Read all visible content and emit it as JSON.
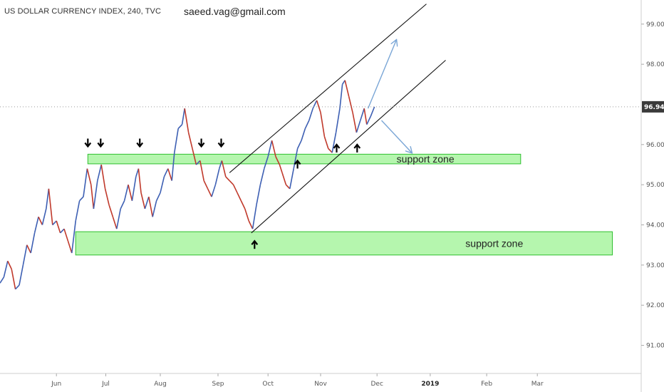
{
  "header": {
    "symbol_title": "US DOLLAR CURRENCY INDEX, 240, TVC",
    "author": "saeed.vag@gmail.com"
  },
  "colors": {
    "up_candle": "#3d5fb3",
    "down_candle": "#c0392b",
    "zone_fill": "#a8f5a0",
    "zone_stroke": "#2fbf2f",
    "channel_line": "#111111",
    "projection_arrow": "#7aa6d6",
    "price_tag_bg": "#3a3a3a",
    "price_line": "#9a9a9a"
  },
  "chart_data": {
    "type": "line",
    "ylim": [
      90.3,
      99.6
    ],
    "yticks": [
      "99.00",
      "98.00",
      "96.00",
      "95.00",
      "94.00",
      "93.00",
      "92.00",
      "91.00"
    ],
    "ytick_values": [
      99,
      98,
      96,
      95,
      94,
      93,
      92,
      91
    ],
    "xticks": [
      "Jun",
      "Jul",
      "Aug",
      "Sep",
      "Oct",
      "Nov",
      "Dec",
      "2019",
      "Feb",
      "Mar"
    ],
    "xtick_positions": [
      0.088,
      0.165,
      0.25,
      0.34,
      0.418,
      0.5,
      0.588,
      0.671,
      0.759,
      0.838
    ],
    "last_price": "96.94",
    "last_price_value": 96.94,
    "series": [
      {
        "points": [
          [
            0.0,
            92.55
          ],
          [
            0.006,
            92.7
          ],
          [
            0.012,
            93.1
          ],
          [
            0.018,
            92.9
          ],
          [
            0.024,
            92.4
          ],
          [
            0.03,
            92.5
          ],
          [
            0.036,
            93.0
          ],
          [
            0.042,
            93.5
          ],
          [
            0.048,
            93.3
          ],
          [
            0.054,
            93.8
          ],
          [
            0.06,
            94.2
          ],
          [
            0.066,
            94.0
          ],
          [
            0.072,
            94.4
          ],
          [
            0.076,
            94.9
          ],
          [
            0.082,
            94.0
          ],
          [
            0.088,
            94.1
          ],
          [
            0.094,
            93.8
          ],
          [
            0.1,
            93.9
          ],
          [
            0.106,
            93.6
          ],
          [
            0.112,
            93.3
          ],
          [
            0.118,
            94.1
          ],
          [
            0.124,
            94.6
          ],
          [
            0.13,
            94.7
          ],
          [
            0.136,
            95.4
          ],
          [
            0.142,
            95.0
          ],
          [
            0.146,
            94.4
          ],
          [
            0.152,
            95.1
          ],
          [
            0.158,
            95.5
          ],
          [
            0.164,
            94.9
          ],
          [
            0.17,
            94.5
          ],
          [
            0.176,
            94.2
          ],
          [
            0.182,
            93.9
          ],
          [
            0.188,
            94.4
          ],
          [
            0.194,
            94.6
          ],
          [
            0.2,
            95.0
          ],
          [
            0.206,
            94.6
          ],
          [
            0.212,
            95.2
          ],
          [
            0.216,
            95.4
          ],
          [
            0.22,
            94.8
          ],
          [
            0.226,
            94.4
          ],
          [
            0.232,
            94.7
          ],
          [
            0.238,
            94.2
          ],
          [
            0.244,
            94.6
          ],
          [
            0.25,
            94.8
          ],
          [
            0.256,
            95.2
          ],
          [
            0.262,
            95.4
          ],
          [
            0.268,
            95.1
          ],
          [
            0.272,
            95.8
          ],
          [
            0.278,
            96.4
          ],
          [
            0.284,
            96.5
          ],
          [
            0.288,
            96.9
          ],
          [
            0.294,
            96.3
          ],
          [
            0.3,
            95.9
          ],
          [
            0.306,
            95.5
          ],
          [
            0.312,
            95.6
          ],
          [
            0.318,
            95.1
          ],
          [
            0.324,
            94.9
          ],
          [
            0.33,
            94.7
          ],
          [
            0.336,
            95.0
          ],
          [
            0.342,
            95.4
          ],
          [
            0.346,
            95.6
          ],
          [
            0.352,
            95.2
          ],
          [
            0.358,
            95.1
          ],
          [
            0.364,
            95.0
          ],
          [
            0.37,
            94.8
          ],
          [
            0.376,
            94.6
          ],
          [
            0.382,
            94.4
          ],
          [
            0.388,
            94.1
          ],
          [
            0.394,
            93.9
          ],
          [
            0.4,
            94.5
          ],
          [
            0.406,
            95.0
          ],
          [
            0.412,
            95.4
          ],
          [
            0.418,
            95.7
          ],
          [
            0.424,
            96.1
          ],
          [
            0.43,
            95.7
          ],
          [
            0.436,
            95.5
          ],
          [
            0.44,
            95.3
          ],
          [
            0.446,
            95.0
          ],
          [
            0.452,
            94.9
          ],
          [
            0.458,
            95.4
          ],
          [
            0.464,
            95.9
          ],
          [
            0.47,
            96.1
          ],
          [
            0.476,
            96.4
          ],
          [
            0.482,
            96.6
          ],
          [
            0.488,
            96.9
          ],
          [
            0.494,
            97.1
          ],
          [
            0.5,
            96.8
          ],
          [
            0.506,
            96.2
          ],
          [
            0.512,
            95.9
          ],
          [
            0.518,
            95.8
          ],
          [
            0.524,
            96.3
          ],
          [
            0.53,
            96.9
          ],
          [
            0.534,
            97.5
          ],
          [
            0.538,
            97.6
          ],
          [
            0.544,
            97.2
          ],
          [
            0.55,
            96.8
          ],
          [
            0.556,
            96.3
          ],
          [
            0.562,
            96.6
          ],
          [
            0.568,
            96.9
          ],
          [
            0.572,
            96.5
          ],
          [
            0.578,
            96.7
          ],
          [
            0.584,
            96.94
          ]
        ]
      }
    ],
    "annotations": [
      {
        "kind": "support zone",
        "label": "support zone",
        "y_range": [
          93.25,
          93.83
        ],
        "x_range": [
          0.118,
          0.955
        ]
      },
      {
        "kind": "support zone",
        "label": "support zone",
        "y_range": [
          95.52,
          95.76
        ],
        "x_range": [
          0.137,
          0.812
        ]
      },
      {
        "kind": "channel line",
        "x": [
          0.358,
          0.665
        ],
        "y": [
          95.3,
          99.5
        ]
      },
      {
        "kind": "channel line",
        "x": [
          0.392,
          0.695
        ],
        "y": [
          93.8,
          98.1
        ]
      },
      {
        "kind": "projection arrow",
        "x": [
          0.574,
          0.618
        ],
        "y": [
          96.9,
          98.6
        ]
      },
      {
        "kind": "projection arrow",
        "x": [
          0.595,
          0.642
        ],
        "y": [
          96.6,
          95.8
        ]
      },
      {
        "kind": "marker down",
        "x": [
          0.137,
          0.157,
          0.218,
          0.314,
          0.345
        ]
      },
      {
        "kind": "marker up",
        "x": [
          0.397,
          0.464,
          0.525,
          0.557
        ]
      }
    ]
  }
}
